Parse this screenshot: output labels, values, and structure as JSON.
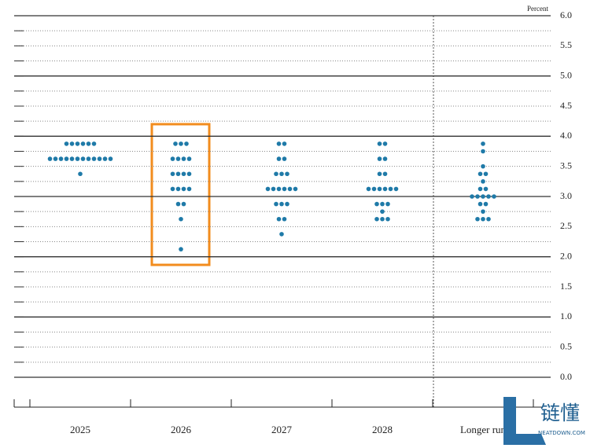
{
  "chart_data": {
    "type": "dot",
    "y_unit_label": "Percent",
    "categories": [
      "2025",
      "2026",
      "2027",
      "2028",
      "Longer run"
    ],
    "dots": [
      [
        {
          "value": 3.875,
          "count": 6
        },
        {
          "value": 3.625,
          "count": 12
        },
        {
          "value": 3.375,
          "count": 1
        }
      ],
      [
        {
          "value": 3.875,
          "count": 3
        },
        {
          "value": 3.625,
          "count": 4
        },
        {
          "value": 3.375,
          "count": 4
        },
        {
          "value": 3.125,
          "count": 4
        },
        {
          "value": 2.875,
          "count": 2
        },
        {
          "value": 2.625,
          "count": 1
        },
        {
          "value": 2.125,
          "count": 1
        }
      ],
      [
        {
          "value": 3.875,
          "count": 2
        },
        {
          "value": 3.625,
          "count": 2
        },
        {
          "value": 3.375,
          "count": 3
        },
        {
          "value": 3.125,
          "count": 6
        },
        {
          "value": 2.875,
          "count": 3
        },
        {
          "value": 2.625,
          "count": 2
        },
        {
          "value": 2.375,
          "count": 1
        }
      ],
      [
        {
          "value": 3.875,
          "count": 2
        },
        {
          "value": 3.625,
          "count": 2
        },
        {
          "value": 3.375,
          "count": 2
        },
        {
          "value": 3.125,
          "count": 6
        },
        {
          "value": 2.875,
          "count": 3
        },
        {
          "value": 2.75,
          "count": 1
        },
        {
          "value": 2.625,
          "count": 3
        }
      ],
      [
        {
          "value": 3.875,
          "count": 1
        },
        {
          "value": 3.75,
          "count": 1
        },
        {
          "value": 3.5,
          "count": 1
        },
        {
          "value": 3.375,
          "count": 2
        },
        {
          "value": 3.25,
          "count": 1
        },
        {
          "value": 3.125,
          "count": 2
        },
        {
          "value": 3.0,
          "count": 5
        },
        {
          "value": 2.875,
          "count": 2
        },
        {
          "value": 2.75,
          "count": 1
        },
        {
          "value": 2.625,
          "count": 3
        }
      ]
    ],
    "color": "#1f7aa8",
    "ylim": [
      -0.4,
      6.0
    ],
    "yticks": [
      {
        "value": 0,
        "label": "0.0"
      },
      {
        "value": 0.5,
        "label": "0.5"
      },
      {
        "value": 1,
        "label": "1.0"
      },
      {
        "value": 1.5,
        "label": "1.5"
      },
      {
        "value": 2,
        "label": "2.0"
      },
      {
        "value": 2.5,
        "label": "2.5"
      },
      {
        "value": 3,
        "label": "3.0"
      },
      {
        "value": 3.5,
        "label": "3.5"
      },
      {
        "value": 4,
        "label": "4.0"
      },
      {
        "value": 4.5,
        "label": "4.5"
      },
      {
        "value": 5,
        "label": "5.0"
      },
      {
        "value": 5.5,
        "label": "5.5"
      },
      {
        "value": 6,
        "label": "6.0"
      }
    ],
    "minor_yticks": [
      0.25,
      0.75,
      1.25,
      1.75,
      2.25,
      2.75,
      3.25,
      3.75,
      4.25,
      4.75,
      5.25,
      5.75
    ],
    "grid": true,
    "watermark": {
      "text": "链懂",
      "subtext": "NEATDOWN.COM"
    }
  }
}
